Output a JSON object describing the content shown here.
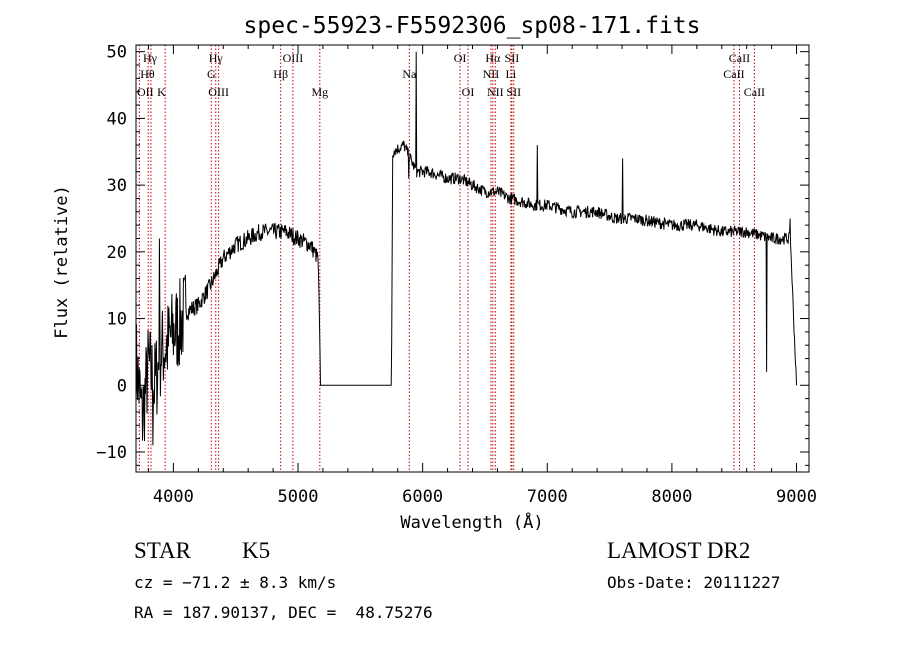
{
  "chart_data": {
    "type": "line",
    "title": "spec-55923-F5592306_sp08-171.fits",
    "xlabel": "Wavelength (Å)",
    "ylabel": "Flux (relative)",
    "xlim": [
      3700,
      9100
    ],
    "ylim": [
      -13,
      51
    ],
    "xticks": [
      4000,
      5000,
      6000,
      7000,
      8000,
      9000
    ],
    "xtick_labels": [
      "4000",
      "5000",
      "6000",
      "7000",
      "8000",
      "9000"
    ],
    "yticks": [
      -10,
      0,
      10,
      20,
      30,
      40,
      50
    ],
    "ytick_labels": [
      "−10",
      "0",
      "10",
      "20",
      "30",
      "40",
      "50"
    ],
    "grid": false,
    "line_color": "#000000",
    "marker_line_color": "#cc0000",
    "spectrum_anchors": [
      [
        3700,
        4
      ],
      [
        3750,
        -5
      ],
      [
        3800,
        3
      ],
      [
        3850,
        0
      ],
      [
        3900,
        5
      ],
      [
        3950,
        6
      ],
      [
        4000,
        8
      ],
      [
        4050,
        9
      ],
      [
        4100,
        11
      ],
      [
        4200,
        12
      ],
      [
        4300,
        15
      ],
      [
        4350,
        17
      ],
      [
        4400,
        19
      ],
      [
        4500,
        21
      ],
      [
        4600,
        22
      ],
      [
        4700,
        23
      ],
      [
        4800,
        23
      ],
      [
        4900,
        23
      ],
      [
        5000,
        22
      ],
      [
        5100,
        21
      ],
      [
        5160,
        19
      ],
      [
        5170,
        11
      ],
      [
        5180,
        0
      ],
      [
        5750,
        0
      ],
      [
        5760,
        35
      ],
      [
        5850,
        36
      ],
      [
        5950,
        32
      ],
      [
        6050,
        32
      ],
      [
        6200,
        31
      ],
      [
        6300,
        31
      ],
      [
        6500,
        29
      ],
      [
        6600,
        29
      ],
      [
        6700,
        28
      ],
      [
        6900,
        27
      ],
      [
        7000,
        27
      ],
      [
        7200,
        26
      ],
      [
        7400,
        26
      ],
      [
        7550,
        25
      ],
      [
        7700,
        25
      ],
      [
        8000,
        24
      ],
      [
        8200,
        24
      ],
      [
        8400,
        23
      ],
      [
        8600,
        23
      ],
      [
        8800,
        22
      ],
      [
        8950,
        22
      ],
      [
        9000,
        0
      ]
    ],
    "spectrum_features": [
      [
        3835,
        -9
      ],
      [
        3890,
        22
      ],
      [
        5890,
        31
      ],
      [
        5950,
        50
      ],
      [
        6920,
        36
      ],
      [
        7605,
        34
      ],
      [
        8760,
        2
      ],
      [
        8950,
        25
      ],
      [
        9000,
        0
      ]
    ],
    "spectral_lines": [
      {
        "label": "OII",
        "wave": 3727,
        "row": 3,
        "align": "left"
      },
      {
        "label": "Hγ",
        "wave": 3820,
        "row": 1,
        "align": "left"
      },
      {
        "label": "Hθ",
        "wave": 3798,
        "row": 2,
        "align": "left"
      },
      {
        "label": "K",
        "wave": 3934,
        "row": 3,
        "align": "left"
      },
      {
        "label": "Hγ",
        "wave": 4340,
        "row": 1,
        "align": "center"
      },
      {
        "label": "G",
        "wave": 4304,
        "row": 2,
        "align": "center"
      },
      {
        "label": "OIII",
        "wave": 4363,
        "row": 3,
        "align": "center"
      },
      {
        "label": "OIII",
        "wave": 4959,
        "row": 1,
        "align": "center"
      },
      {
        "label": "Hβ",
        "wave": 4861,
        "row": 2,
        "align": "center"
      },
      {
        "label": "Mg",
        "wave": 5175,
        "row": 3,
        "align": "center"
      },
      {
        "label": "Na",
        "wave": 5893,
        "row": 2,
        "align": "center"
      },
      {
        "label": "OI",
        "wave": 6300,
        "row": 1,
        "align": "center"
      },
      {
        "label": "OI",
        "wave": 6364,
        "row": 3,
        "align": "center"
      },
      {
        "label": "Hα",
        "wave": 6563,
        "row": 1,
        "align": "center"
      },
      {
        "label": "SII",
        "wave": 6716,
        "row": 1,
        "align": "center"
      },
      {
        "label": "NII",
        "wave": 6548,
        "row": 2,
        "align": "center"
      },
      {
        "label": "Li",
        "wave": 6708,
        "row": 2,
        "align": "center"
      },
      {
        "label": "NII",
        "wave": 6583,
        "row": 3,
        "align": "center"
      },
      {
        "label": "SII",
        "wave": 6731,
        "row": 3,
        "align": "center"
      },
      {
        "label": "CaII",
        "wave": 8542,
        "row": 1,
        "align": "center"
      },
      {
        "label": "CaII",
        "wave": 8498,
        "row": 2,
        "align": "center"
      },
      {
        "label": "CaII",
        "wave": 8662,
        "row": 3,
        "align": "center"
      }
    ]
  },
  "info": {
    "class_label": "STAR",
    "subclass": "K5",
    "survey": "LAMOST DR2",
    "redshift": "cz = −71.2 ± 8.3 km/s",
    "obs_date": "Obs-Date: 20111227",
    "coords": "RA = 187.90137, DEC =  48.75276"
  }
}
